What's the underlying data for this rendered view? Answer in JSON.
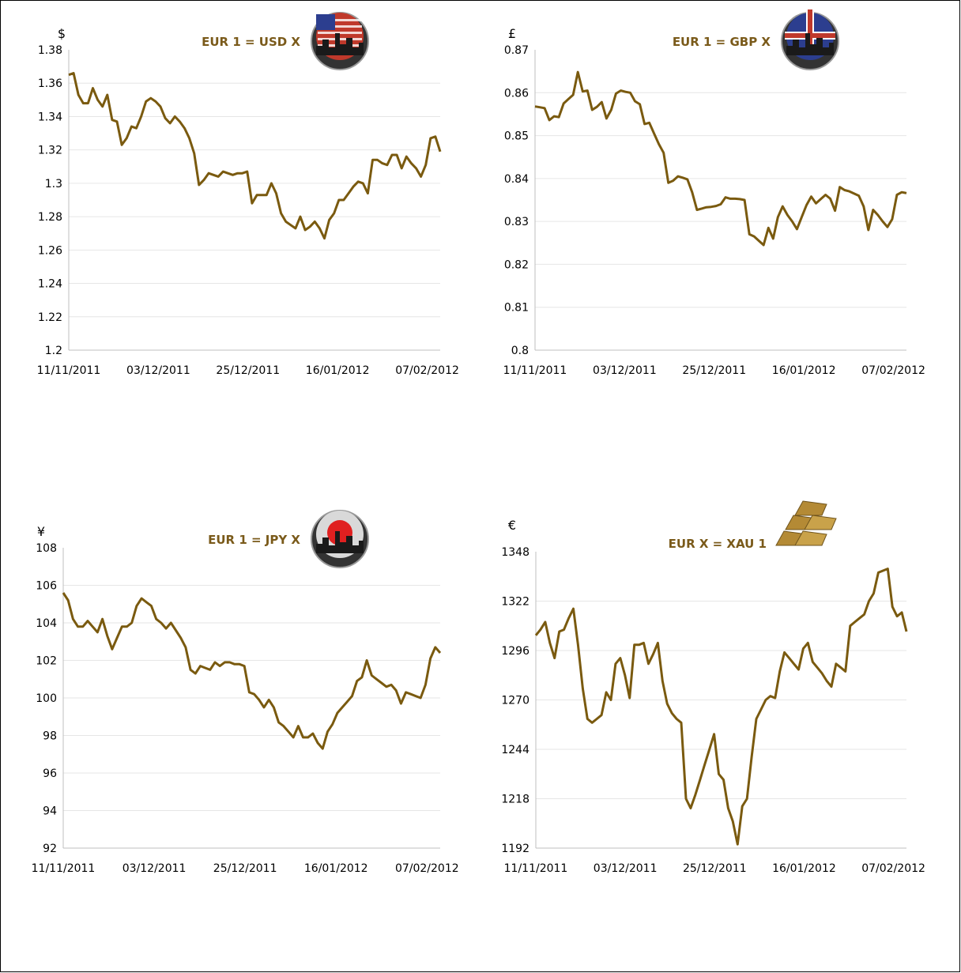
{
  "colors": {
    "line": "#7a5a0f",
    "title": "#7a5a1a",
    "grid": "#e6e6e6"
  },
  "chart_data": [
    {
      "id": "usd",
      "type": "line",
      "title": "EUR 1 = USD X",
      "unit_label": "$",
      "icon": "us-flag-icon",
      "x_tick_labels": [
        "11/11/2011",
        "03/12/2011",
        "25/12/2011",
        "16/01/2012",
        "07/02/2012"
      ],
      "y_ticks": [
        "1.38",
        "1.36",
        "1.34",
        "1.32",
        "1.3",
        "1.28",
        "1.26",
        "1.24",
        "1.22",
        "1.2"
      ],
      "ylim": [
        1.2,
        1.38
      ],
      "grid": true,
      "y": [
        1.365,
        1.366,
        1.353,
        1.348,
        1.348,
        1.357,
        1.35,
        1.346,
        1.353,
        1.338,
        1.337,
        1.323,
        1.327,
        1.334,
        1.333,
        1.34,
        1.349,
        1.351,
        1.349,
        1.346,
        1.339,
        1.336,
        1.34,
        1.337,
        1.333,
        1.327,
        1.318,
        1.299,
        1.302,
        1.306,
        1.305,
        1.304,
        1.307,
        1.306,
        1.305,
        1.306,
        1.306,
        1.307,
        1.288,
        1.293,
        1.293,
        1.293,
        1.3,
        1.294,
        1.282,
        1.277,
        1.275,
        1.273,
        1.28,
        1.272,
        1.274,
        1.277,
        1.273,
        1.267,
        1.278,
        1.282,
        1.29,
        1.29,
        1.294,
        1.298,
        1.301,
        1.3,
        1.294,
        1.314,
        1.314,
        1.312,
        1.311,
        1.317,
        1.317,
        1.309,
        1.316,
        1.312,
        1.309,
        1.304,
        1.311,
        1.327,
        1.328,
        1.319
      ]
    },
    {
      "id": "gbp",
      "type": "line",
      "title": "EUR 1 = GBP X",
      "unit_label": "£",
      "icon": "uk-flag-icon",
      "x_tick_labels": [
        "11/11/2011",
        "03/12/2011",
        "25/12/2011",
        "16/01/2012",
        "07/02/2012"
      ],
      "y_ticks": [
        "0.87",
        "0.86",
        "0.85",
        "0.84",
        "0.83",
        "0.82",
        "0.81",
        "0.8"
      ],
      "ylim": [
        0.8,
        0.87
      ],
      "grid": true,
      "y": [
        0.8568,
        0.8566,
        0.8564,
        0.8536,
        0.8545,
        0.8543,
        0.8575,
        0.8585,
        0.8595,
        0.8648,
        0.8603,
        0.8605,
        0.856,
        0.8567,
        0.8578,
        0.854,
        0.856,
        0.8598,
        0.8605,
        0.8602,
        0.86,
        0.858,
        0.8573,
        0.8527,
        0.853,
        0.8505,
        0.848,
        0.846,
        0.839,
        0.8395,
        0.8405,
        0.8402,
        0.8398,
        0.8368,
        0.8327,
        0.833,
        0.8333,
        0.8334,
        0.8336,
        0.834,
        0.8356,
        0.8353,
        0.8353,
        0.8352,
        0.835,
        0.827,
        0.8265,
        0.8255,
        0.8245,
        0.8285,
        0.826,
        0.831,
        0.8335,
        0.8315,
        0.83,
        0.8282,
        0.831,
        0.8338,
        0.8358,
        0.8342,
        0.8352,
        0.8362,
        0.8353,
        0.8325,
        0.838,
        0.8373,
        0.837,
        0.8365,
        0.836,
        0.8335,
        0.828,
        0.8327,
        0.8315,
        0.83,
        0.8287,
        0.8305,
        0.8362,
        0.8368,
        0.8366
      ]
    },
    {
      "id": "jpy",
      "type": "line",
      "title": "EUR 1 = JPY X",
      "unit_label": "¥",
      "icon": "japan-flag-icon",
      "x_tick_labels": [
        "11/11/2011",
        "03/12/2011",
        "25/12/2011",
        "16/01/2012",
        "07/02/2012"
      ],
      "y_ticks": [
        "108",
        "106",
        "104",
        "102",
        "100",
        "98",
        "96",
        "94",
        "92"
      ],
      "ylim": [
        92,
        108
      ],
      "grid": true,
      "y": [
        105.6,
        105.2,
        104.2,
        103.8,
        103.8,
        104.1,
        103.8,
        103.5,
        104.2,
        103.3,
        102.6,
        103.2,
        103.8,
        103.8,
        104.0,
        104.9,
        105.3,
        105.1,
        104.9,
        104.2,
        104.0,
        103.7,
        104.0,
        103.6,
        103.2,
        102.7,
        101.5,
        101.3,
        101.7,
        101.6,
        101.5,
        101.9,
        101.7,
        101.9,
        101.9,
        101.8,
        101.8,
        101.7,
        100.3,
        100.2,
        99.9,
        99.5,
        99.9,
        99.5,
        98.7,
        98.5,
        98.2,
        97.9,
        98.5,
        97.9,
        97.9,
        98.1,
        97.6,
        97.3,
        98.2,
        98.6,
        99.2,
        99.5,
        99.8,
        100.1,
        100.9,
        101.1,
        102.0,
        101.2,
        101.0,
        100.8,
        100.6,
        100.7,
        100.4,
        99.7,
        100.3,
        100.2,
        100.1,
        100.0,
        100.7,
        102.1,
        102.7,
        102.4
      ]
    },
    {
      "id": "xau",
      "type": "line",
      "title": "EUR X = XAU 1",
      "unit_label": "€",
      "icon": "gold-bars-icon",
      "x_tick_labels": [
        "11/11/2011",
        "03/12/2011",
        "25/12/2011",
        "16/01/2012",
        "07/02/2012"
      ],
      "y_ticks": [
        "1348",
        "1322",
        "1296",
        "1270",
        "1244",
        "1218",
        "1192"
      ],
      "ylim": [
        1192,
        1348
      ],
      "grid": true,
      "y": [
        1304,
        1307,
        1311,
        1300,
        1292,
        1306,
        1307,
        1313,
        1318,
        1299,
        1276,
        1260,
        1258,
        1260,
        1262,
        1274,
        1270,
        1289,
        1292,
        1283,
        1271,
        1299,
        1299,
        1300,
        1289,
        1294,
        1300,
        1280,
        1268,
        1263,
        1260,
        1258,
        1218,
        1213,
        1220,
        1228,
        1236,
        1244,
        1252,
        1231,
        1228,
        1213,
        1206,
        1194,
        1214,
        1218,
        1240,
        1260,
        1265,
        1270,
        1272,
        1271,
        1285,
        1295,
        1292,
        1289,
        1286,
        1297,
        1300,
        1290,
        1287,
        1284,
        1280,
        1277,
        1289,
        1287,
        1285,
        1309,
        1311,
        1313,
        1315,
        1322,
        1326,
        1337,
        1338,
        1339,
        1319,
        1314,
        1316,
        1306
      ]
    }
  ]
}
